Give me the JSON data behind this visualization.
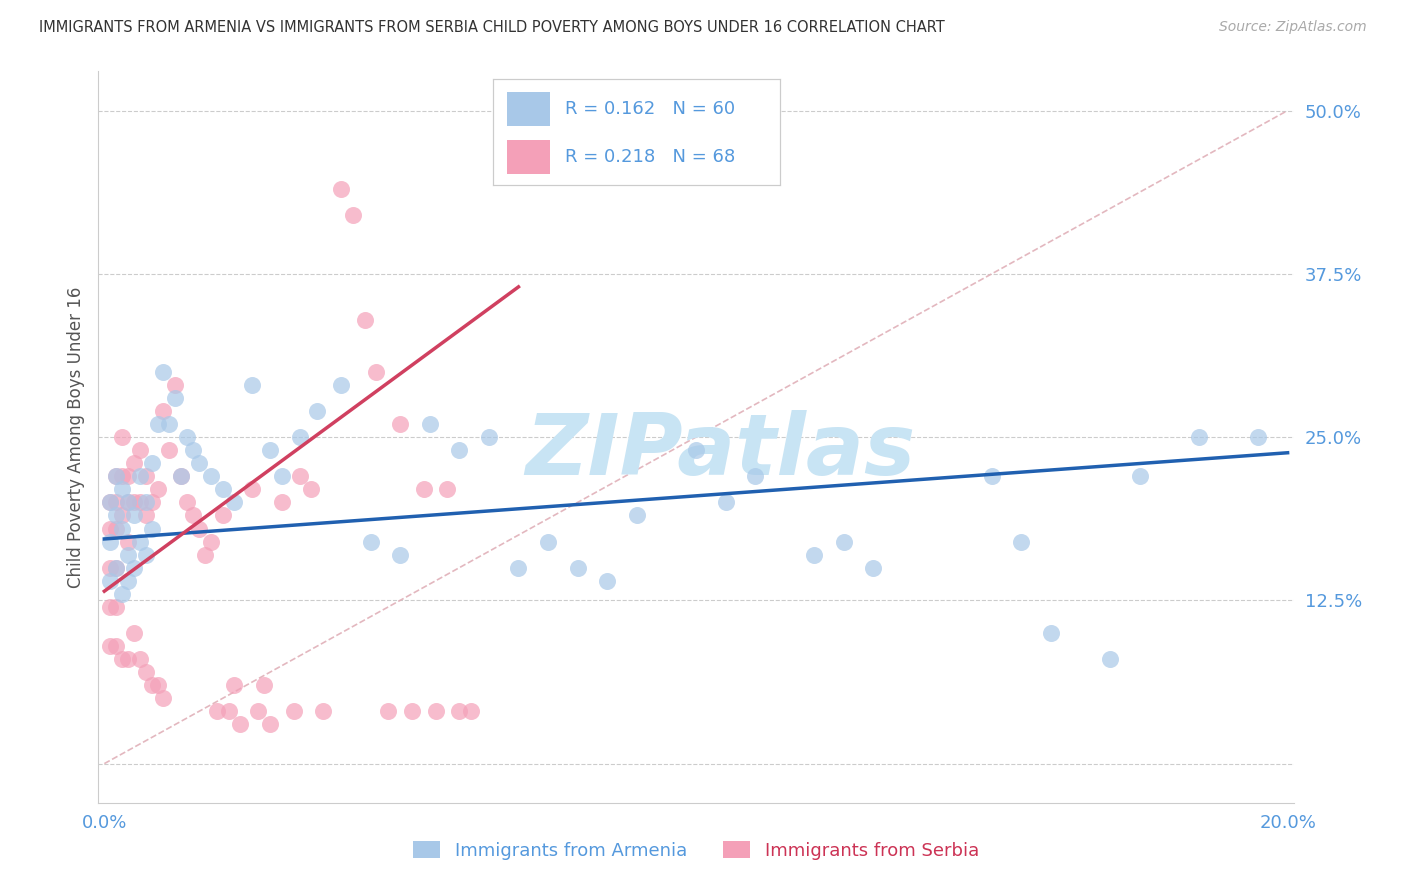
{
  "title": "IMMIGRANTS FROM ARMENIA VS IMMIGRANTS FROM SERBIA CHILD POVERTY AMONG BOYS UNDER 16 CORRELATION CHART",
  "source": "Source: ZipAtlas.com",
  "ylabel": "Child Poverty Among Boys Under 16",
  "legend_label_armenia": "Immigrants from Armenia",
  "legend_label_serbia": "Immigrants from Serbia",
  "r_armenia": 0.162,
  "n_armenia": 60,
  "r_serbia": 0.218,
  "n_serbia": 68,
  "xlim": [
    -0.001,
    0.201
  ],
  "ylim": [
    -0.03,
    0.53
  ],
  "ytick_vals": [
    0.0,
    0.125,
    0.25,
    0.375,
    0.5
  ],
  "ytick_labels": [
    "",
    "12.5%",
    "25.0%",
    "37.5%",
    "50.0%"
  ],
  "xtick_vals": [
    0.0,
    0.05,
    0.1,
    0.15,
    0.2
  ],
  "xtick_labels": [
    "0.0%",
    "",
    "",
    "",
    "20.0%"
  ],
  "armenia_color": "#a8c8e8",
  "serbia_color": "#f4a0b8",
  "armenia_line_color": "#2060b0",
  "serbia_line_color": "#d04060",
  "ref_line_color": "#e0b0b8",
  "watermark_color": "#c8e4f4",
  "right_label_color": "#5599dd",
  "bottom_label_color": "#5599dd",
  "title_color": "#333333",
  "source_color": "#aaaaaa",
  "arm_line_x0": 0.0,
  "arm_line_y0": 0.172,
  "arm_line_x1": 0.2,
  "arm_line_y1": 0.238,
  "ser_line_x0": 0.0,
  "ser_line_y0": 0.132,
  "ser_line_x1": 0.07,
  "ser_line_y1": 0.365,
  "armenia_x": [
    0.001,
    0.001,
    0.001,
    0.002,
    0.002,
    0.002,
    0.003,
    0.003,
    0.003,
    0.004,
    0.004,
    0.004,
    0.005,
    0.005,
    0.006,
    0.006,
    0.007,
    0.007,
    0.008,
    0.008,
    0.009,
    0.01,
    0.011,
    0.012,
    0.013,
    0.014,
    0.015,
    0.016,
    0.018,
    0.02,
    0.022,
    0.025,
    0.028,
    0.03,
    0.033,
    0.036,
    0.04,
    0.045,
    0.05,
    0.055,
    0.06,
    0.065,
    0.07,
    0.075,
    0.08,
    0.085,
    0.09,
    0.1,
    0.105,
    0.11,
    0.12,
    0.125,
    0.13,
    0.15,
    0.155,
    0.16,
    0.17,
    0.175,
    0.185,
    0.195
  ],
  "armenia_y": [
    0.2,
    0.17,
    0.14,
    0.22,
    0.19,
    0.15,
    0.21,
    0.18,
    0.13,
    0.2,
    0.16,
    0.14,
    0.19,
    0.15,
    0.22,
    0.17,
    0.2,
    0.16,
    0.23,
    0.18,
    0.26,
    0.3,
    0.26,
    0.28,
    0.22,
    0.25,
    0.24,
    0.23,
    0.22,
    0.21,
    0.2,
    0.29,
    0.24,
    0.22,
    0.25,
    0.27,
    0.29,
    0.17,
    0.16,
    0.26,
    0.24,
    0.25,
    0.15,
    0.17,
    0.15,
    0.14,
    0.19,
    0.24,
    0.2,
    0.22,
    0.16,
    0.17,
    0.15,
    0.22,
    0.17,
    0.1,
    0.08,
    0.22,
    0.25,
    0.25
  ],
  "serbia_x": [
    0.001,
    0.001,
    0.001,
    0.001,
    0.001,
    0.002,
    0.002,
    0.002,
    0.002,
    0.002,
    0.002,
    0.003,
    0.003,
    0.003,
    0.003,
    0.004,
    0.004,
    0.004,
    0.004,
    0.005,
    0.005,
    0.005,
    0.006,
    0.006,
    0.006,
    0.007,
    0.007,
    0.007,
    0.008,
    0.008,
    0.009,
    0.009,
    0.01,
    0.01,
    0.011,
    0.012,
    0.013,
    0.014,
    0.015,
    0.016,
    0.017,
    0.018,
    0.019,
    0.02,
    0.021,
    0.022,
    0.023,
    0.025,
    0.026,
    0.027,
    0.028,
    0.03,
    0.032,
    0.033,
    0.035,
    0.037,
    0.04,
    0.042,
    0.044,
    0.046,
    0.048,
    0.05,
    0.052,
    0.054,
    0.056,
    0.058,
    0.06,
    0.062
  ],
  "serbia_y": [
    0.2,
    0.18,
    0.15,
    0.12,
    0.09,
    0.22,
    0.2,
    0.18,
    0.15,
    0.12,
    0.09,
    0.25,
    0.22,
    0.19,
    0.08,
    0.22,
    0.2,
    0.17,
    0.08,
    0.23,
    0.2,
    0.1,
    0.24,
    0.2,
    0.08,
    0.22,
    0.19,
    0.07,
    0.2,
    0.06,
    0.21,
    0.06,
    0.27,
    0.05,
    0.24,
    0.29,
    0.22,
    0.2,
    0.19,
    0.18,
    0.16,
    0.17,
    0.04,
    0.19,
    0.04,
    0.06,
    0.03,
    0.21,
    0.04,
    0.06,
    0.03,
    0.2,
    0.04,
    0.22,
    0.21,
    0.04,
    0.44,
    0.42,
    0.34,
    0.3,
    0.04,
    0.26,
    0.04,
    0.21,
    0.04,
    0.21,
    0.04,
    0.04
  ]
}
